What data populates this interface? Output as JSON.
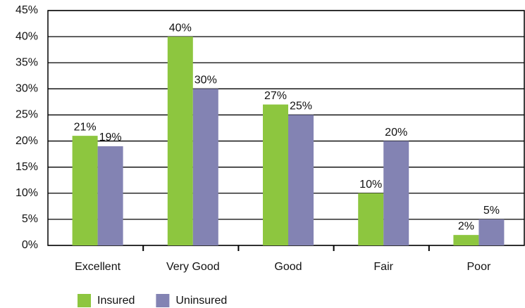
{
  "chart_data": {
    "type": "bar",
    "categories": [
      "Excellent",
      "Very Good",
      "Good",
      "Fair",
      "Poor"
    ],
    "series": [
      {
        "name": "Insured",
        "color": "#8dc63f",
        "values": [
          21,
          40,
          27,
          10,
          2
        ],
        "value_labels": [
          "21%",
          "40%",
          "27%",
          "10%",
          "2%"
        ]
      },
      {
        "name": "Uninsured",
        "color": "#8383b3",
        "values": [
          19,
          30,
          25,
          20,
          5
        ],
        "value_labels": [
          "19%",
          "30%",
          "25%",
          "20%",
          "5%"
        ]
      }
    ],
    "ylim": [
      0,
      45
    ],
    "yticks": [
      {
        "value": 0,
        "label": "0%"
      },
      {
        "value": 5,
        "label": "5%"
      },
      {
        "value": 10,
        "label": "10%"
      },
      {
        "value": 15,
        "label": "15%"
      },
      {
        "value": 20,
        "label": "20%"
      },
      {
        "value": 25,
        "label": "25%"
      },
      {
        "value": 30,
        "label": "30%"
      },
      {
        "value": 35,
        "label": "35%"
      },
      {
        "value": 40,
        "label": "40%"
      },
      {
        "value": 45,
        "label": "45%"
      }
    ],
    "grid": true,
    "legend": "bottom-left"
  }
}
